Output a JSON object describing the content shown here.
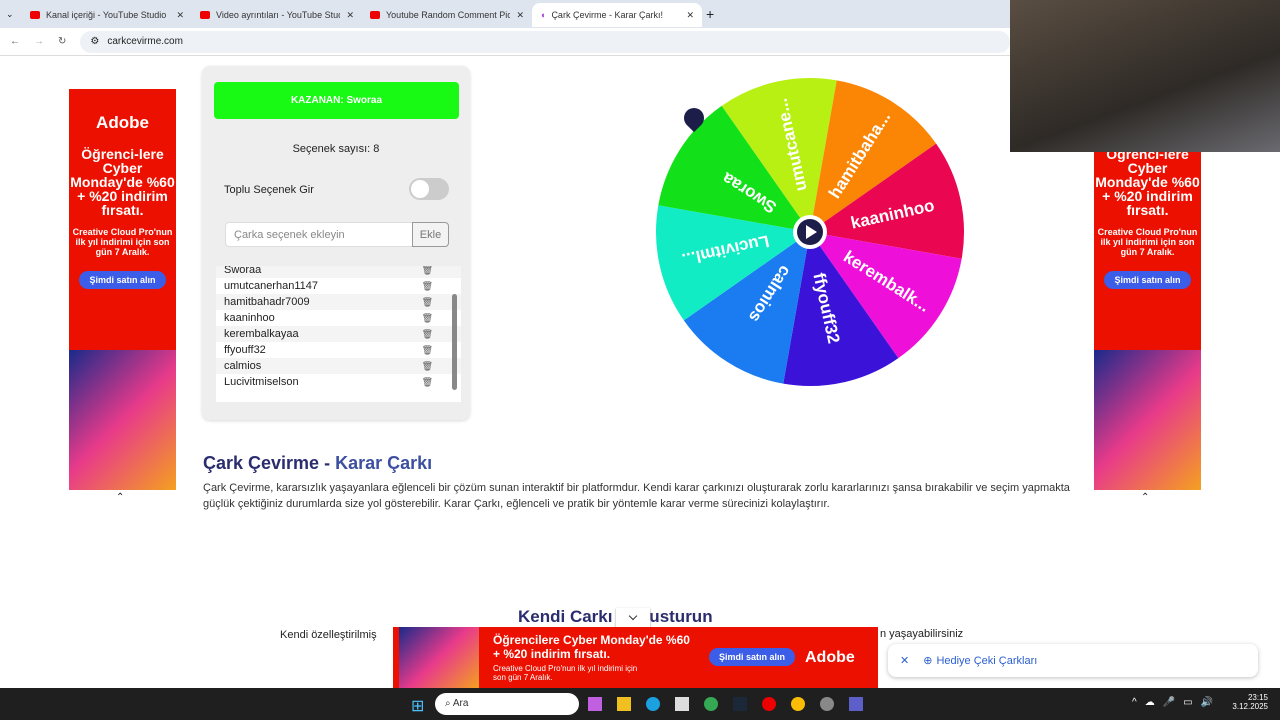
{
  "browser": {
    "tabs": [
      {
        "title": "Kanal içeriği - YouTube Studio"
      },
      {
        "title": "Video ayrıntıları - YouTube Studio"
      },
      {
        "title": "Youtube Random Comment Picker"
      },
      {
        "title": "Çark Çevirme - Karar Çarkı!",
        "active": true
      }
    ],
    "url": "carkcevirme.com"
  },
  "panel": {
    "winner": "KAZANAN: Sworaa",
    "count": "Seçenek sayısı: 8",
    "bulk_label": "Toplu Seçenek Gir",
    "bulk_on": false,
    "input_placeholder": "Çarka seçenek ekleyin",
    "add_label": "Ekle",
    "items": [
      "Sworaa",
      "umutcanerhan1147",
      "hamitbahadr7009",
      "kaaninhoo",
      "kerembalkayaa",
      "ffyouff32",
      "calmios",
      "Lucivitmiselson"
    ]
  },
  "wheel": {
    "segments": [
      {
        "label": "umutcane...",
        "color": "#b8f013"
      },
      {
        "label": "hamitbaha...",
        "color": "#fb8505"
      },
      {
        "label": "kaaninhoo",
        "color": "#ea0650"
      },
      {
        "label": "kerembalk...",
        "color": "#ee10d8"
      },
      {
        "label": "ffyouff32",
        "color": "#3a12d8"
      },
      {
        "label": "calmios",
        "color": "#1a7cf0"
      },
      {
        "label": "Lucivitml...",
        "color": "#12ecc4"
      },
      {
        "label": "Sworaa",
        "color": "#12e018"
      }
    ]
  },
  "article": {
    "title_a": "Çark Çevirme - ",
    "title_b": "Karar Çarkı",
    "text": "Çark Çevirme, kararsızlık yaşayanlara eğlenceli bir çözüm sunan interaktif bir platformdur. Kendi karar çarkınızı oluşturarak zorlu kararlarınızı şansa bırakabilir ve seçim yapmakta güçlük çektiğiniz durumlarda size yol gösterebilir. Karar Çarkı, eğlenceli ve pratik bir yöntemle karar verme sürecinizi kolaylaştırır.",
    "h2": "Kendi Carkı    Olusturun",
    "text2_a": "Kendi özelleştirilmiş",
    "text2_b": "n yaşayabilirsiniz"
  },
  "ads": {
    "brand": "Adobe",
    "headline": "Öğrenci-lere Cyber Monday'de %60 + %20 indirim fırsatı.",
    "sub": "Creative Cloud Pro'nun ilk yıl indirimi için son gün 7 Aralık.",
    "cta": "Şimdi satın alın",
    "banner_headline": "Öğrencilere Cyber Monday'de %60 + %20 indirim fırsatı.",
    "banner_sub": "Creative Cloud Pro'nun ilk yıl indirimi için son gün 7 Aralık."
  },
  "popup": {
    "label": "Hediye Çeki Çarkları"
  },
  "taskbar": {
    "search": "Ara",
    "time": "23:15",
    "date": "3.12.2025"
  }
}
